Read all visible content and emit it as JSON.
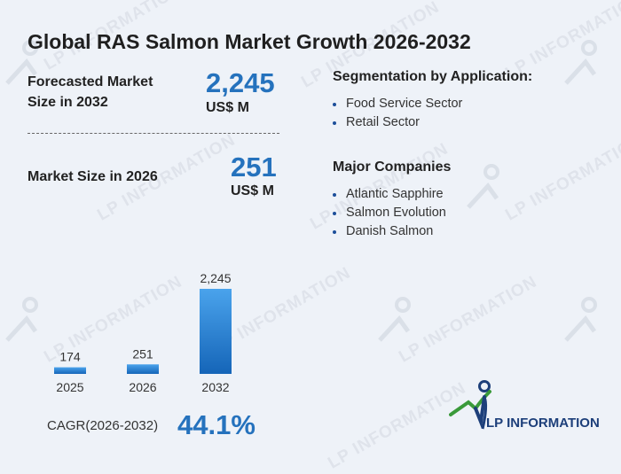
{
  "title": "Global RAS Salmon Market Growth 2026-2032",
  "forecast": {
    "label_line1": "Forecasted Market",
    "label_line2": "Size in 2032",
    "value": "2,245",
    "unit": "US$ M"
  },
  "current": {
    "label": "Market Size in 2026",
    "value": "251",
    "unit": "US$ M"
  },
  "segmentation": {
    "title": "Segmentation by Application:",
    "items": [
      "Food Service Sector",
      "Retail Sector"
    ]
  },
  "companies": {
    "title": "Major Companies",
    "items": [
      "Atlantic Sapphire",
      "Salmon Evolution",
      "Danish Salmon"
    ]
  },
  "cagr": {
    "label": "CAGR(2026-2032)",
    "value": "44.1%"
  },
  "brand": {
    "name": "LP INFORMATION",
    "watermark": "LP INFORMATION"
  },
  "colors": {
    "accent": "#2572bd",
    "bar_top": "#4aa3ec",
    "bar_bottom": "#1565b8",
    "logo_green": "#3a9a3a",
    "logo_blue": "#1d3f7a"
  },
  "chart_data": {
    "type": "bar",
    "categories": [
      "2025",
      "2026",
      "2032"
    ],
    "values": [
      174,
      251,
      2245
    ],
    "data_labels": [
      "174",
      "251",
      "2,245"
    ],
    "title": "",
    "xlabel": "",
    "ylabel": "",
    "ylim": [
      0,
      2245
    ],
    "grid": false
  }
}
